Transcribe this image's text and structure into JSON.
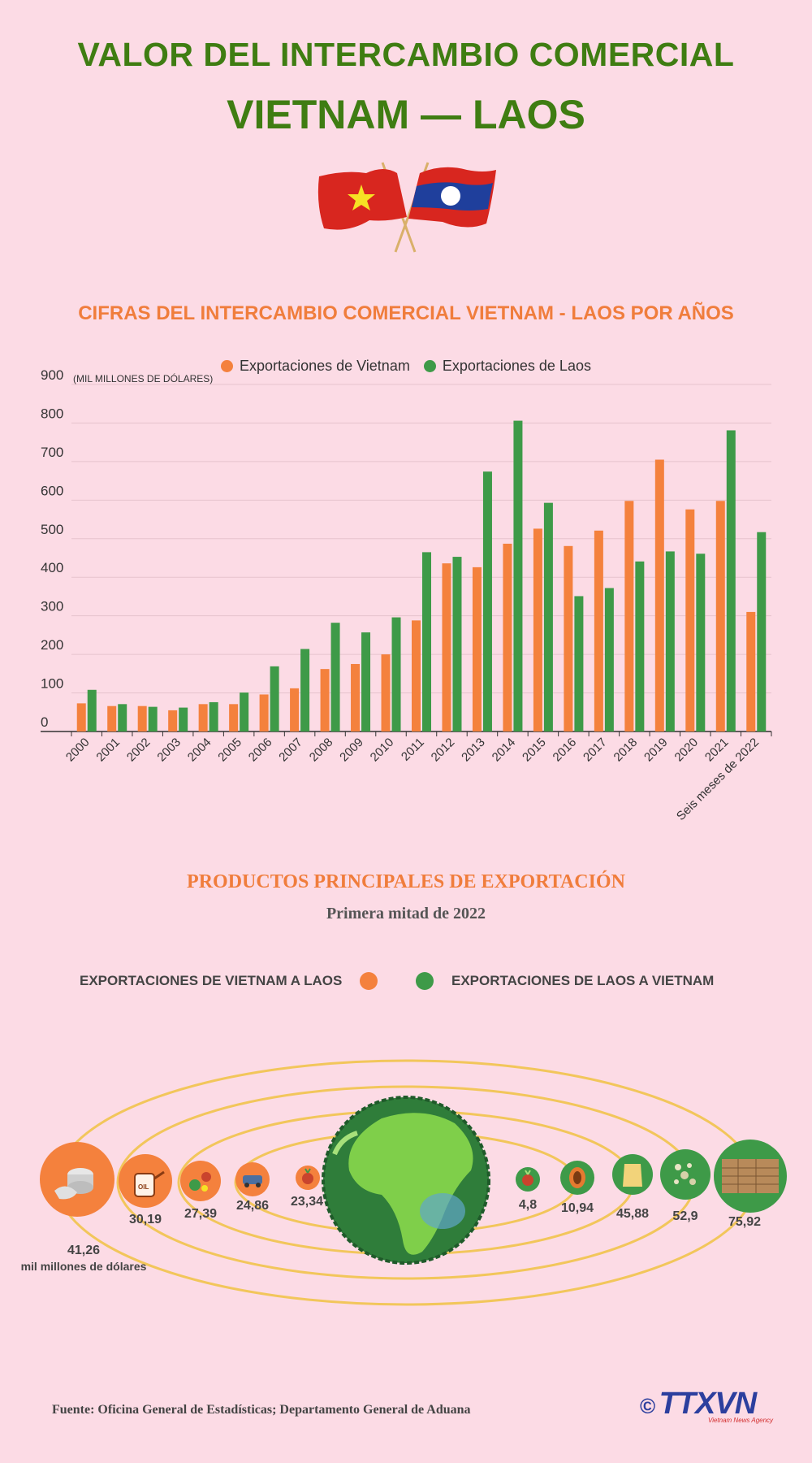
{
  "header": {
    "title_line1": "VALOR DEL INTERCAMBIO COMERCIAL",
    "title_line2": "VIETNAM — LAOS"
  },
  "colors": {
    "vietnam": "#f4813d",
    "laos": "#3e9a48",
    "title_green": "#3f7d12",
    "accent_orange": "#f07d3c",
    "background": "#fcdbe5"
  },
  "chart_data": {
    "type": "bar",
    "title": "CIFRAS DEL INTERCAMBIO COMERCIAL VIETNAM - LAOS POR AÑOS",
    "ylabel": "(MIL MILLONES DE DÓLARES)",
    "ylim": [
      0,
      900
    ],
    "yticks": [
      0,
      100,
      200,
      300,
      400,
      500,
      600,
      700,
      800,
      900
    ],
    "grid": true,
    "legend_position": "top-center",
    "categories": [
      "2000",
      "2001",
      "2002",
      "2003",
      "2004",
      "2005",
      "2006",
      "2007",
      "2008",
      "2009",
      "2010",
      "2011",
      "2012",
      "2013",
      "2014",
      "2015",
      "2016",
      "2017",
      "2018",
      "2019",
      "2020",
      "2021",
      "Seis meses de 2022"
    ],
    "series": [
      {
        "name": "Exportaciones de Vietnam",
        "color": "#f4813d",
        "values": [
          73,
          66,
          66,
          55,
          71,
          71,
          96,
          112,
          162,
          175,
          200,
          288,
          436,
          426,
          487,
          526,
          481,
          521,
          598,
          705,
          576,
          598,
          310
        ]
      },
      {
        "name": "Exportaciones de Laos",
        "color": "#3e9a48",
        "values": [
          108,
          71,
          64,
          62,
          76,
          101,
          169,
          214,
          282,
          257,
          296,
          465,
          453,
          674,
          806,
          593,
          351,
          372,
          441,
          467,
          461,
          781,
          517
        ]
      }
    ]
  },
  "products": {
    "title": "PRODUCTOS PRINCIPALES DE EXPORTACIÓN",
    "subtitle": "Primera mitad de 2022",
    "legend_vietnam": "EXPORTACIONES DE VIETNAM A LAOS",
    "legend_laos": "EXPORTACIONES DE LAOS A VIETNAM",
    "unit": "mil millones de dólares",
    "vietnam_items": [
      {
        "value": "41,26",
        "icon": "steel-icon"
      },
      {
        "value": "30,19",
        "icon": "oil-can-icon"
      },
      {
        "value": "27,39",
        "icon": "machinery-icon"
      },
      {
        "value": "24,86",
        "icon": "vehicle-icon"
      },
      {
        "value": "23,34",
        "icon": "vegetables-icon"
      }
    ],
    "laos_items": [
      {
        "value": "4,8",
        "icon": "vegetables-icon"
      },
      {
        "value": "10,94",
        "icon": "rubber-icon"
      },
      {
        "value": "45,88",
        "icon": "fertilizer-bag-icon"
      },
      {
        "value": "52,9",
        "icon": "ore-icon"
      },
      {
        "value": "75,92",
        "icon": "wood-icon"
      }
    ]
  },
  "footer": {
    "source": "Fuente: Oficina General de Estadísticas; Departamento General de Aduana",
    "logo_copyright": "©",
    "logo_text": "TTXVN",
    "logo_sub": "Vietnam News Agency"
  }
}
